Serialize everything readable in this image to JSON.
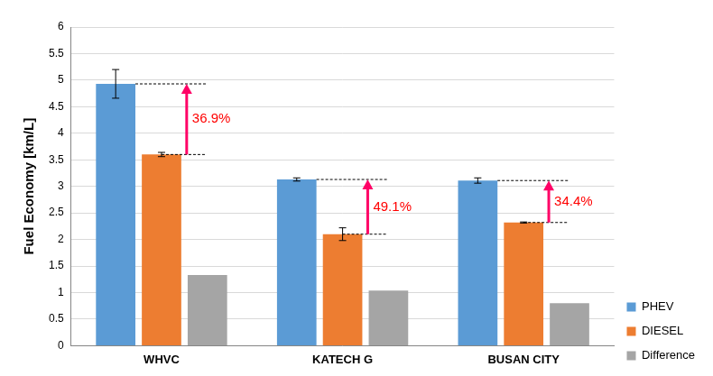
{
  "chart_data": {
    "type": "bar",
    "y_label": "Fuel Economy [km/L]",
    "categories": [
      "WHVC",
      "KATECH G",
      "BUSAN CITY"
    ],
    "series": [
      {
        "name": "PHEV",
        "color": "#5b9bd5",
        "values": [
          4.93,
          3.13,
          3.11
        ],
        "errors": [
          0.27,
          0.03,
          0.05
        ]
      },
      {
        "name": "DIESEL",
        "color": "#ed7d31",
        "values": [
          3.6,
          2.1,
          2.32
        ],
        "errors": [
          0.04,
          0.12,
          0.01
        ]
      },
      {
        "name": "Difference",
        "color": "#a5a5a5",
        "values": [
          1.33,
          1.04,
          0.8
        ]
      }
    ],
    "annotations": [
      {
        "category": "WHVC",
        "text": "36.9%"
      },
      {
        "category": "KATECH G",
        "text": "49.1%"
      },
      {
        "category": "BUSAN CITY",
        "text": "34.4%"
      }
    ],
    "ylim": [
      0,
      6
    ],
    "yticks": [
      0,
      0.5,
      1,
      1.5,
      2,
      2.5,
      3,
      3.5,
      4,
      4.5,
      5,
      5.5,
      6
    ],
    "grid": true,
    "legend": "right"
  }
}
